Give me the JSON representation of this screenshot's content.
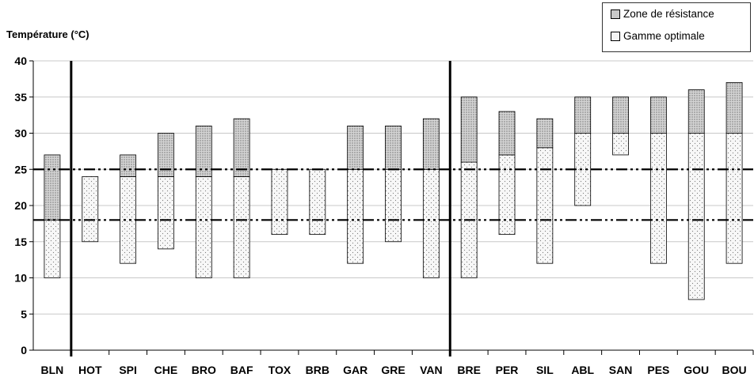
{
  "chart_data": {
    "type": "bar",
    "subtype": "floating-stacked-range",
    "ylabel": "Température (°C)",
    "ylim": [
      0,
      40
    ],
    "yticks": [
      0,
      5,
      10,
      15,
      20,
      25,
      30,
      35,
      40
    ],
    "grid": "horizontal",
    "legend_position": "top-right",
    "categories": [
      "BLN",
      "HOT",
      "SPI",
      "CHE",
      "BRO",
      "BAF",
      "TOX",
      "BRB",
      "GAR",
      "GRE",
      "VAN",
      "BRE",
      "PER",
      "SIL",
      "ABL",
      "SAN",
      "PES",
      "GOU",
      "BOU"
    ],
    "series": [
      {
        "name": "Gamme optimale",
        "ranges": [
          [
            10,
            18
          ],
          [
            15,
            24
          ],
          [
            12,
            24
          ],
          [
            14,
            24
          ],
          [
            10,
            24
          ],
          [
            10,
            24
          ],
          [
            16,
            25
          ],
          [
            16,
            25
          ],
          [
            12,
            25
          ],
          [
            15,
            25
          ],
          [
            10,
            25
          ],
          [
            10,
            26
          ],
          [
            16,
            27
          ],
          [
            12,
            28
          ],
          [
            20,
            30
          ],
          [
            27,
            30
          ],
          [
            12,
            30
          ],
          [
            7,
            30
          ],
          [
            12,
            30
          ]
        ]
      },
      {
        "name": "Zone de résistance",
        "ranges": [
          [
            18,
            27
          ],
          [
            24,
            24
          ],
          [
            24,
            27
          ],
          [
            24,
            30
          ],
          [
            24,
            31
          ],
          [
            24,
            32
          ],
          [
            25,
            25
          ],
          [
            25,
            25
          ],
          [
            25,
            31
          ],
          [
            25,
            31
          ],
          [
            25,
            32
          ],
          [
            26,
            35
          ],
          [
            27,
            33
          ],
          [
            28,
            32
          ],
          [
            30,
            35
          ],
          [
            30,
            35
          ],
          [
            30,
            35
          ],
          [
            30,
            36
          ],
          [
            30,
            37
          ]
        ]
      }
    ],
    "reference_lines": [
      18,
      25
    ],
    "group_separators_after": [
      "BLN",
      "VAN"
    ],
    "colors": {
      "optimal_fill": "#f4f4f4",
      "resistance_fill": "#c9c9c9",
      "grid": "#c8c8c8",
      "outline": "#000000"
    }
  },
  "legend": {
    "items": [
      {
        "label": "Zone de résistance",
        "swatch": "dense-dots"
      },
      {
        "label": "Gamme optimale",
        "swatch": "sparse-dots"
      }
    ]
  }
}
